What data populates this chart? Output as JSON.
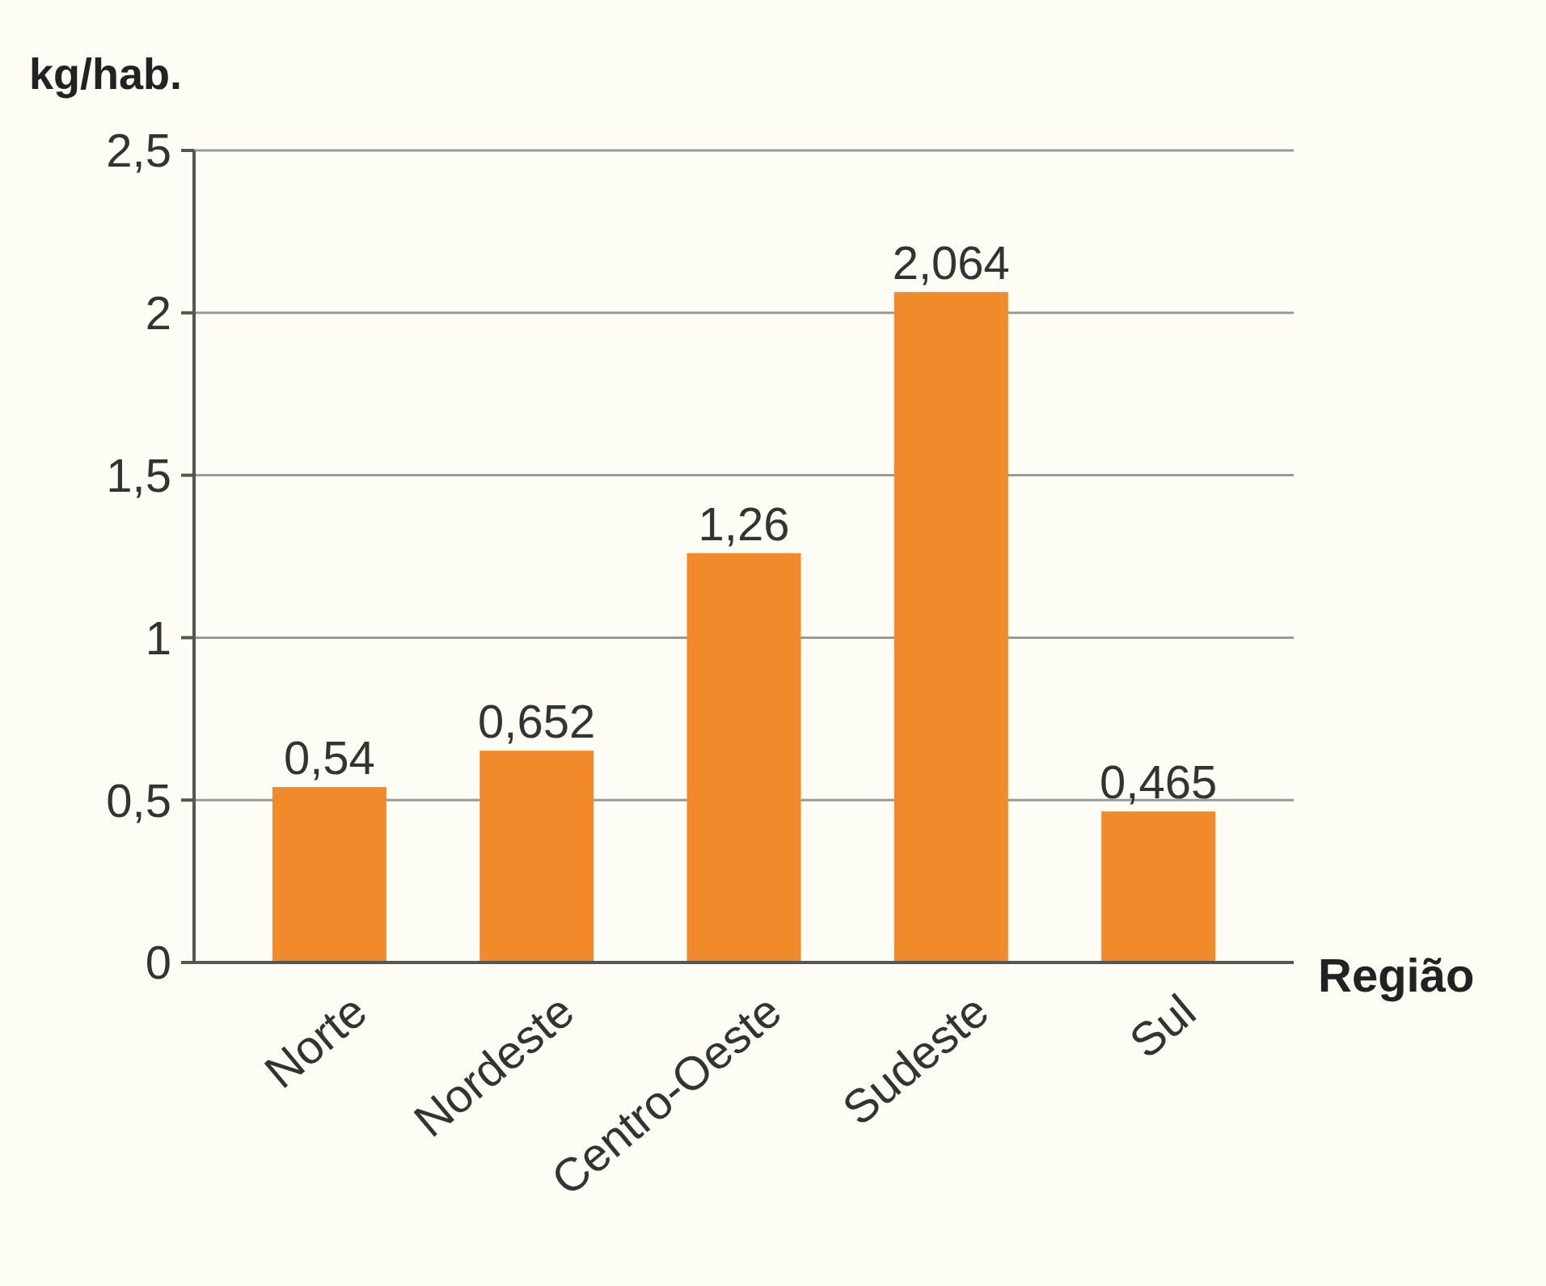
{
  "chart_data": {
    "type": "bar",
    "xlabel": "Região",
    "ylabel": "kg/hab.",
    "categories": [
      "Norte",
      "Nordeste",
      "Centro-Oeste",
      "Sudeste",
      "Sul"
    ],
    "values": [
      0.54,
      0.652,
      1.26,
      2.064,
      0.465
    ],
    "value_labels": [
      "0,54",
      "0,652",
      "1,26",
      "2,064",
      "0,465"
    ],
    "color": "#f18a2b",
    "ylim": [
      0,
      2.5
    ],
    "yticks": [
      0,
      {
        "value": 0.5,
        "label": "0,5"
      },
      1,
      {
        "value": 1.5,
        "label": "1,5"
      },
      2,
      {
        "value": 2.5,
        "label": "2,5"
      }
    ],
    "grid": "y"
  }
}
